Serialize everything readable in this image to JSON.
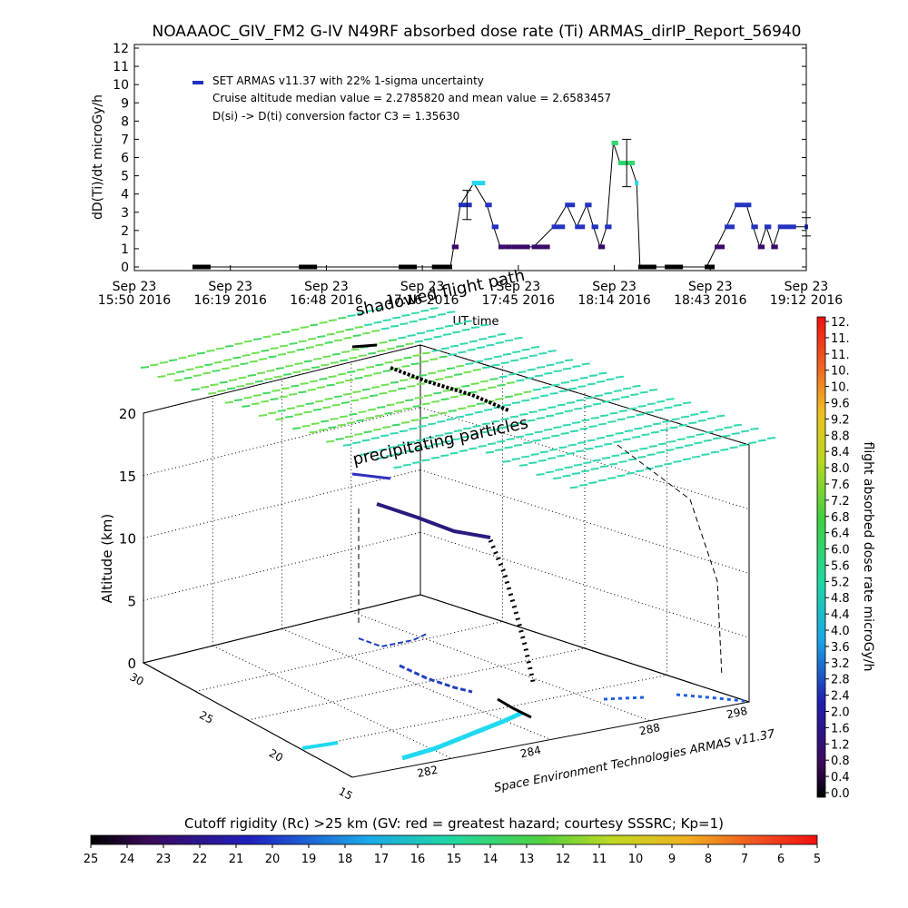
{
  "title": "NOAAAOC_GIV_FM2 G-IV    N49RF  absorbed dose rate (Ti) ARMAS_dirIP_Report_56940",
  "chart_data": [
    {
      "type": "line",
      "ylabel": "dD(Ti)/dt microGy/h",
      "xlabel": "UT time",
      "ylim": [
        0,
        12
      ],
      "yticks": [
        "0",
        "1",
        "2",
        "3",
        "4",
        "5",
        "6",
        "7",
        "8",
        "9",
        "10",
        "11",
        "12"
      ],
      "xticks": [
        {
          "l1": "Sep 23",
          "l2": "15:50 2016"
        },
        {
          "l1": "Sep 23",
          "l2": "16:19 2016"
        },
        {
          "l1": "Sep 23",
          "l2": "16:48 2016"
        },
        {
          "l1": "Sep 23",
          "l2": "17:16 2016"
        },
        {
          "l1": "Sep 23",
          "l2": "17:45 2016"
        },
        {
          "l1": "Sep 23",
          "l2": "18:14 2016"
        },
        {
          "l1": "Sep 23",
          "l2": "18:43 2016"
        },
        {
          "l1": "Sep 23",
          "l2": "19:12 2016"
        }
      ],
      "xstart": "15:50",
      "xend": "19:12",
      "legend": {
        "series": "SET ARMAS v11.37 with 22% 1-sigma uncertainty",
        "line2": "Cruise altitude median value = 2.2785820 and mean value = 2.6583457",
        "line3": "D(si) -> D(ti) conversion factor C3 = 1.35630"
      },
      "series": [
        {
          "x": [
            "16:08",
            "16:40",
            "17:10",
            "17:20",
            "17:25",
            "17:26",
            "17:28",
            "17:32",
            "17:36",
            "17:38",
            "17:40",
            "17:42",
            "17:44",
            "17:50",
            "17:56",
            "18:00",
            "18:03",
            "18:06",
            "18:08",
            "18:10",
            "18:12",
            "18:14",
            "18:16",
            "18:19",
            "18:21",
            "18:22",
            "18:30",
            "18:42",
            "18:45",
            "18:48",
            "18:51",
            "18:54",
            "18:56",
            "18:58",
            "19:00",
            "19:02",
            "19:04",
            "19:12"
          ],
          "y": [
            0,
            0,
            0,
            0,
            0,
            1.1,
            3.4,
            4.6,
            3.4,
            2.2,
            1.1,
            1.1,
            1.1,
            1.1,
            2.2,
            3.4,
            2.2,
            3.4,
            2.2,
            1.1,
            2.2,
            6.8,
            5.7,
            5.7,
            4.6,
            0,
            0,
            0,
            1.1,
            2.2,
            3.4,
            3.4,
            2.2,
            1.1,
            2.2,
            1.1,
            2.2,
            2.2
          ]
        }
      ],
      "error_bars": [
        {
          "x": "17:30",
          "y": 3.4,
          "lo": 2.6,
          "hi": 4.2
        },
        {
          "x": "18:18",
          "y": 5.7,
          "lo": 4.4,
          "hi": 7.0
        },
        {
          "x": "19:12",
          "y": 2.2,
          "lo": 1.7,
          "hi": 2.7
        }
      ]
    },
    {
      "type": "scatter",
      "zlabel": "Altitude (km)",
      "ztick_labels": [
        "0",
        "5",
        "10",
        "15",
        "20"
      ],
      "y_tick_labels": [
        "15",
        "20",
        "25",
        "30"
      ],
      "x_tick_labels": [
        "282",
        "284",
        "288",
        "298"
      ],
      "annotations": [
        "shadowed flight path",
        "precipitating particles"
      ],
      "credit": "Space Environment Technologies ARMAS v11.37"
    }
  ],
  "colorbar_right": {
    "label": "flight absorbed dose rate microGy/h",
    "ticks": [
      "12.",
      "11.",
      "11.",
      "10.",
      "10.",
      "9.6",
      "9.2",
      "8.8",
      "8.4",
      "8.0",
      "7.6",
      "7.2",
      "6.8",
      "6.4",
      "6.0",
      "5.6",
      "5.2",
      "4.8",
      "4.4",
      "4.0",
      "3.6",
      "3.2",
      "2.8",
      "2.4",
      "2.0",
      "1.6",
      "1.2",
      "0.8",
      "0.4",
      "0.0"
    ]
  },
  "colorbar_bottom": {
    "title": "Cutoff rigidity (Rc) >25 km (GV: red = greatest hazard; courtesy SSSRC; Kp=1)",
    "ticks": [
      "25",
      "24",
      "23",
      "22",
      "21",
      "20",
      "19",
      "18",
      "17",
      "16",
      "15",
      "14",
      "13",
      "12",
      "11",
      "10",
      "9",
      "8",
      "7",
      "6",
      "5"
    ]
  }
}
